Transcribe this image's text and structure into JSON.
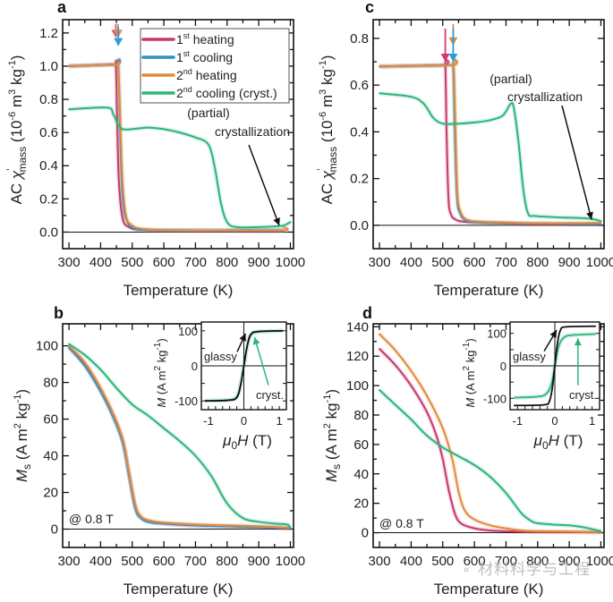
{
  "chart_data": [
    {
      "id": "a",
      "panel_label": "a",
      "type": "line",
      "xlabel": "Temperature (K)",
      "ylabel": "AC χ'mass (10^-6 m^3 kg^-1)",
      "ylabel_parts": {
        "prefix": "AC ",
        "symbol": "χ",
        "prime": "'",
        "sub": "mass",
        "unit": " (10",
        "exp1": "-6",
        "unit2": " m",
        "exp2": "3",
        "unit3": " kg",
        "exp3": "-1",
        "unit4": ")"
      },
      "xlim": [
        280,
        1010
      ],
      "ylim": [
        -0.1,
        1.28
      ],
      "xticks": [
        300,
        400,
        500,
        600,
        700,
        800,
        900,
        1000
      ],
      "yticks": [
        0.0,
        0.2,
        0.4,
        0.6,
        0.8,
        1.0,
        1.2
      ],
      "ytick_labels": [
        "0.0",
        "0.2",
        "0.4",
        "0.6",
        "0.8",
        "1.0",
        "1.2"
      ],
      "legend": [
        {
          "label": "1",
          "sup": "st",
          "rest": " heating",
          "color": "#c8386a"
        },
        {
          "label": "1",
          "sup": "st",
          "rest": " cooling",
          "color": "#2f8fc8"
        },
        {
          "label": "2",
          "sup": "nd",
          "rest": " heating",
          "color": "#e08a3c"
        },
        {
          "label": "2",
          "sup": "nd",
          "rest": " cooling (cryst.)",
          "color": "#2db57a"
        }
      ],
      "legend_position": "top-right",
      "annotation": [
        "(partial)",
        "crystallization"
      ],
      "series": [
        {
          "name": "1st heating",
          "color": "#c8386a",
          "x": [
            300,
            440,
            448,
            452,
            458,
            470,
            490,
            520,
            600,
            800,
            980
          ],
          "y": [
            1.0,
            1.01,
            1.01,
            0.7,
            0.3,
            0.08,
            0.03,
            0.015,
            0.01,
            0.01,
            0.01
          ]
        },
        {
          "name": "1st cooling",
          "color": "#2f8fc8",
          "x": [
            300,
            448,
            456,
            462,
            470,
            485,
            510,
            560,
            800,
            980
          ],
          "y": [
            1.0,
            1.01,
            1.01,
            0.6,
            0.2,
            0.06,
            0.02,
            0.012,
            0.01,
            0.01
          ]
        },
        {
          "name": "2nd heating",
          "color": "#e08a3c",
          "x": [
            300,
            445,
            455,
            460,
            468,
            480,
            500,
            530,
            600,
            800,
            978,
            980
          ],
          "y": [
            1.0,
            1.01,
            1.01,
            0.8,
            0.35,
            0.1,
            0.04,
            0.02,
            0.012,
            0.01,
            0.01,
            0.03
          ]
        },
        {
          "name": "2nd cooling (cryst.)",
          "color": "#2db57a",
          "x": [
            300,
            420,
            440,
            455,
            470,
            500,
            550,
            600,
            650,
            700,
            740,
            760,
            780,
            800,
            830,
            900,
            960,
            980,
            1000
          ],
          "y": [
            0.74,
            0.75,
            0.71,
            0.65,
            0.62,
            0.62,
            0.63,
            0.62,
            0.6,
            0.57,
            0.53,
            0.4,
            0.18,
            0.06,
            0.03,
            0.03,
            0.035,
            0.04,
            0.06
          ]
        }
      ],
      "markers": [
        {
          "series": "1st heating",
          "x": 448,
          "color": "#e0507a"
        },
        {
          "series": "2nd heating",
          "x": 455,
          "color": "#e08a3c"
        },
        {
          "series": "1st cooling",
          "x": 456,
          "color": "#2f9ad8"
        }
      ]
    },
    {
      "id": "b",
      "panel_label": "b",
      "type": "line",
      "xlabel": "Temperature (K)",
      "ylabel": "Ms (A m^2 kg^-1)",
      "xlim": [
        280,
        1010
      ],
      "ylim": [
        -10,
        112
      ],
      "xticks": [
        300,
        400,
        500,
        600,
        700,
        800,
        900,
        1000
      ],
      "yticks": [
        0,
        20,
        40,
        60,
        80,
        100
      ],
      "ytick_labels": [
        "0",
        "20",
        "40",
        "60",
        "80",
        "100"
      ],
      "field_label": "@ 0.8 T",
      "series": [
        {
          "name": "1st heating",
          "color": "#c8386a",
          "x": [
            300,
            350,
            400,
            440,
            470,
            490,
            510,
            530,
            560,
            600,
            700,
            800,
            900,
            1000
          ],
          "y": [
            99,
            90,
            76,
            62,
            48,
            30,
            12,
            6,
            4,
            3,
            2,
            1.5,
            1,
            0.5
          ]
        },
        {
          "name": "1st cooling",
          "color": "#2f8fc8",
          "x": [
            300,
            350,
            400,
            440,
            470,
            490,
            510,
            530,
            560,
            600,
            700,
            800,
            900,
            1000
          ],
          "y": [
            99,
            89,
            75,
            61,
            47,
            29,
            11,
            5.5,
            3.5,
            3,
            2,
            1.5,
            1,
            0.5
          ]
        },
        {
          "name": "2nd heating",
          "color": "#e08a3c",
          "x": [
            300,
            350,
            400,
            440,
            470,
            490,
            510,
            530,
            560,
            600,
            700,
            800,
            900,
            1000
          ],
          "y": [
            100,
            91,
            77,
            63,
            49,
            31,
            13,
            6.5,
            4.5,
            3.5,
            2.5,
            2,
            1.5,
            0.5
          ]
        },
        {
          "name": "2nd cooling (cryst.)",
          "color": "#2db57a",
          "x": [
            300,
            350,
            400,
            450,
            500,
            550,
            600,
            650,
            700,
            750,
            800,
            850,
            900,
            950,
            990,
            1000
          ],
          "y": [
            101,
            95,
            87,
            77,
            68,
            62,
            55,
            48,
            40,
            29,
            14,
            6,
            4,
            3,
            2.5,
            0.5
          ]
        }
      ],
      "inset": {
        "xlabel": "μ0H (T)",
        "ylabel": "M (A m^2 kg^-1)",
        "xlim": [
          -1.2,
          1.2
        ],
        "ylim": [
          -125,
          125
        ],
        "xticks": [
          -1,
          0,
          1
        ],
        "yticks": [
          -100,
          0,
          100
        ],
        "ytick_labels": [
          "-100",
          "0",
          "100"
        ],
        "labels": {
          "glassy": "glassy",
          "cryst": "cryst."
        },
        "series": [
          {
            "name": "glassy",
            "color": "#111111",
            "x": [
              -1.1,
              -0.4,
              -0.2,
              -0.1,
              0,
              0.1,
              0.2,
              0.4,
              1.1
            ],
            "y": [
              -100,
              -98,
              -90,
              -60,
              0,
              60,
              90,
              98,
              100
            ]
          },
          {
            "name": "cryst.",
            "color": "#2db57a",
            "x": [
              -1.1,
              -0.4,
              -0.2,
              -0.1,
              0,
              0.1,
              0.2,
              0.4,
              1.1
            ],
            "y": [
              -100,
              -97,
              -88,
              -58,
              0,
              58,
              88,
              97,
              100
            ]
          }
        ]
      }
    },
    {
      "id": "c",
      "panel_label": "c",
      "type": "line",
      "xlabel": "Temperature (K)",
      "ylabel": "AC χ'mass (10^-6 m^3 kg^-1)",
      "xlim": [
        280,
        1010
      ],
      "ylim": [
        -0.1,
        0.88
      ],
      "xticks": [
        300,
        400,
        500,
        600,
        700,
        800,
        900,
        1000
      ],
      "yticks": [
        0.0,
        0.2,
        0.4,
        0.6,
        0.8
      ],
      "ytick_labels": [
        "0.0",
        "0.2",
        "0.4",
        "0.6",
        "0.8"
      ],
      "annotation": [
        "(partial)",
        "crystallization"
      ],
      "series": [
        {
          "name": "1st heating",
          "color": "#c8386a",
          "x": [
            300,
            500,
            508,
            512,
            518,
            525,
            540,
            570,
            650,
            800,
            1000
          ],
          "y": [
            0.68,
            0.685,
            0.685,
            0.4,
            0.12,
            0.05,
            0.025,
            0.015,
            0.01,
            0.005,
            0.005
          ]
        },
        {
          "name": "1st cooling",
          "color": "#2f8fc8",
          "x": [
            300,
            525,
            533,
            538,
            545,
            555,
            575,
            620,
            800,
            1000
          ],
          "y": [
            0.68,
            0.685,
            0.685,
            0.4,
            0.12,
            0.05,
            0.02,
            0.012,
            0.008,
            0.005
          ]
        },
        {
          "name": "2nd heating",
          "color": "#e08a3c",
          "x": [
            300,
            525,
            534,
            540,
            546,
            556,
            575,
            620,
            700,
            800,
            1000
          ],
          "y": [
            0.68,
            0.685,
            0.685,
            0.42,
            0.14,
            0.06,
            0.025,
            0.015,
            0.012,
            0.008,
            0.01
          ]
        },
        {
          "name": "2nd cooling (cryst.)",
          "color": "#2db57a",
          "x": [
            300,
            400,
            440,
            470,
            500,
            550,
            600,
            650,
            690,
            715,
            725,
            740,
            755,
            770,
            790,
            850,
            950,
            980,
            1000
          ],
          "y": [
            0.565,
            0.55,
            0.52,
            0.46,
            0.435,
            0.435,
            0.44,
            0.45,
            0.47,
            0.52,
            0.5,
            0.35,
            0.15,
            0.05,
            0.04,
            0.035,
            0.03,
            0.025,
            0.018
          ]
        }
      ],
      "markers": [
        {
          "series": "1st heating",
          "x": 508,
          "color": "#d0386a"
        },
        {
          "series": "2nd heating",
          "x": 533,
          "color": "#e08a3c"
        },
        {
          "series": "1st cooling",
          "x": 533,
          "color": "#2f9ad8"
        }
      ]
    },
    {
      "id": "d",
      "panel_label": "d",
      "type": "line",
      "xlabel": "Temperature (K)",
      "ylabel": "Ms (A m^2 kg^-1)",
      "xlim": [
        280,
        1010
      ],
      "ylim": [
        -10,
        142
      ],
      "xticks": [
        300,
        400,
        500,
        600,
        700,
        800,
        900,
        1000
      ],
      "yticks": [
        0,
        20,
        40,
        60,
        80,
        100,
        120,
        140
      ],
      "ytick_labels": [
        "0",
        "20",
        "40",
        "60",
        "80",
        "100",
        "120",
        "140"
      ],
      "field_label": "@ 0.8 T",
      "series": [
        {
          "name": "1st heating",
          "color": "#c8386a",
          "x": [
            300,
            350,
            400,
            450,
            480,
            500,
            520,
            540,
            560,
            600,
            650,
            700,
            800,
            1000
          ],
          "y": [
            125,
            114,
            100,
            82,
            66,
            50,
            28,
            12,
            6,
            3,
            1.5,
            1,
            0.5,
            0.3
          ]
        },
        {
          "name": "2nd heating",
          "color": "#e08a3c",
          "x": [
            300,
            350,
            400,
            450,
            500,
            530,
            550,
            570,
            600,
            650,
            700,
            750,
            800,
            1000
          ],
          "y": [
            135,
            124,
            110,
            93,
            71,
            50,
            28,
            15,
            9,
            5,
            3,
            1.5,
            1,
            0.5
          ]
        },
        {
          "name": "2nd cooling (cryst.)",
          "color": "#2db57a",
          "x": [
            300,
            350,
            400,
            450,
            500,
            550,
            600,
            650,
            700,
            750,
            780,
            800,
            850,
            900,
            950,
            1000
          ],
          "y": [
            97,
            87,
            77,
            66,
            58,
            52,
            46,
            38,
            27,
            13,
            8,
            6.5,
            5.5,
            5,
            3.5,
            1
          ]
        }
      ],
      "inset": {
        "xlabel": "μ0H (T)",
        "ylabel": "M (A m^2 kg^-1)",
        "xlim": [
          -1.2,
          1.2
        ],
        "ylim": [
          -135,
          135
        ],
        "xticks": [
          -1,
          0,
          1
        ],
        "yticks": [
          -100,
          0,
          100
        ],
        "ytick_labels": [
          "-100",
          "0",
          "100"
        ],
        "labels": {
          "glassy": "glassy",
          "cryst": "cryst."
        },
        "series": [
          {
            "name": "glassy",
            "color": "#111111",
            "x": [
              -1.1,
              -0.3,
              -0.15,
              -0.07,
              0,
              0.07,
              0.15,
              0.3,
              1.1
            ],
            "y": [
              -122,
              -120,
              -110,
              -70,
              0,
              70,
              110,
              120,
              122
            ]
          },
          {
            "name": "cryst.",
            "color": "#2db57a",
            "x": [
              -1.1,
              -0.5,
              -0.25,
              -0.1,
              0,
              0.1,
              0.25,
              0.5,
              1.1
            ],
            "y": [
              -98,
              -95,
              -88,
              -60,
              0,
              60,
              88,
              95,
              98
            ]
          }
        ]
      }
    }
  ],
  "watermark": "材料科学与工程"
}
